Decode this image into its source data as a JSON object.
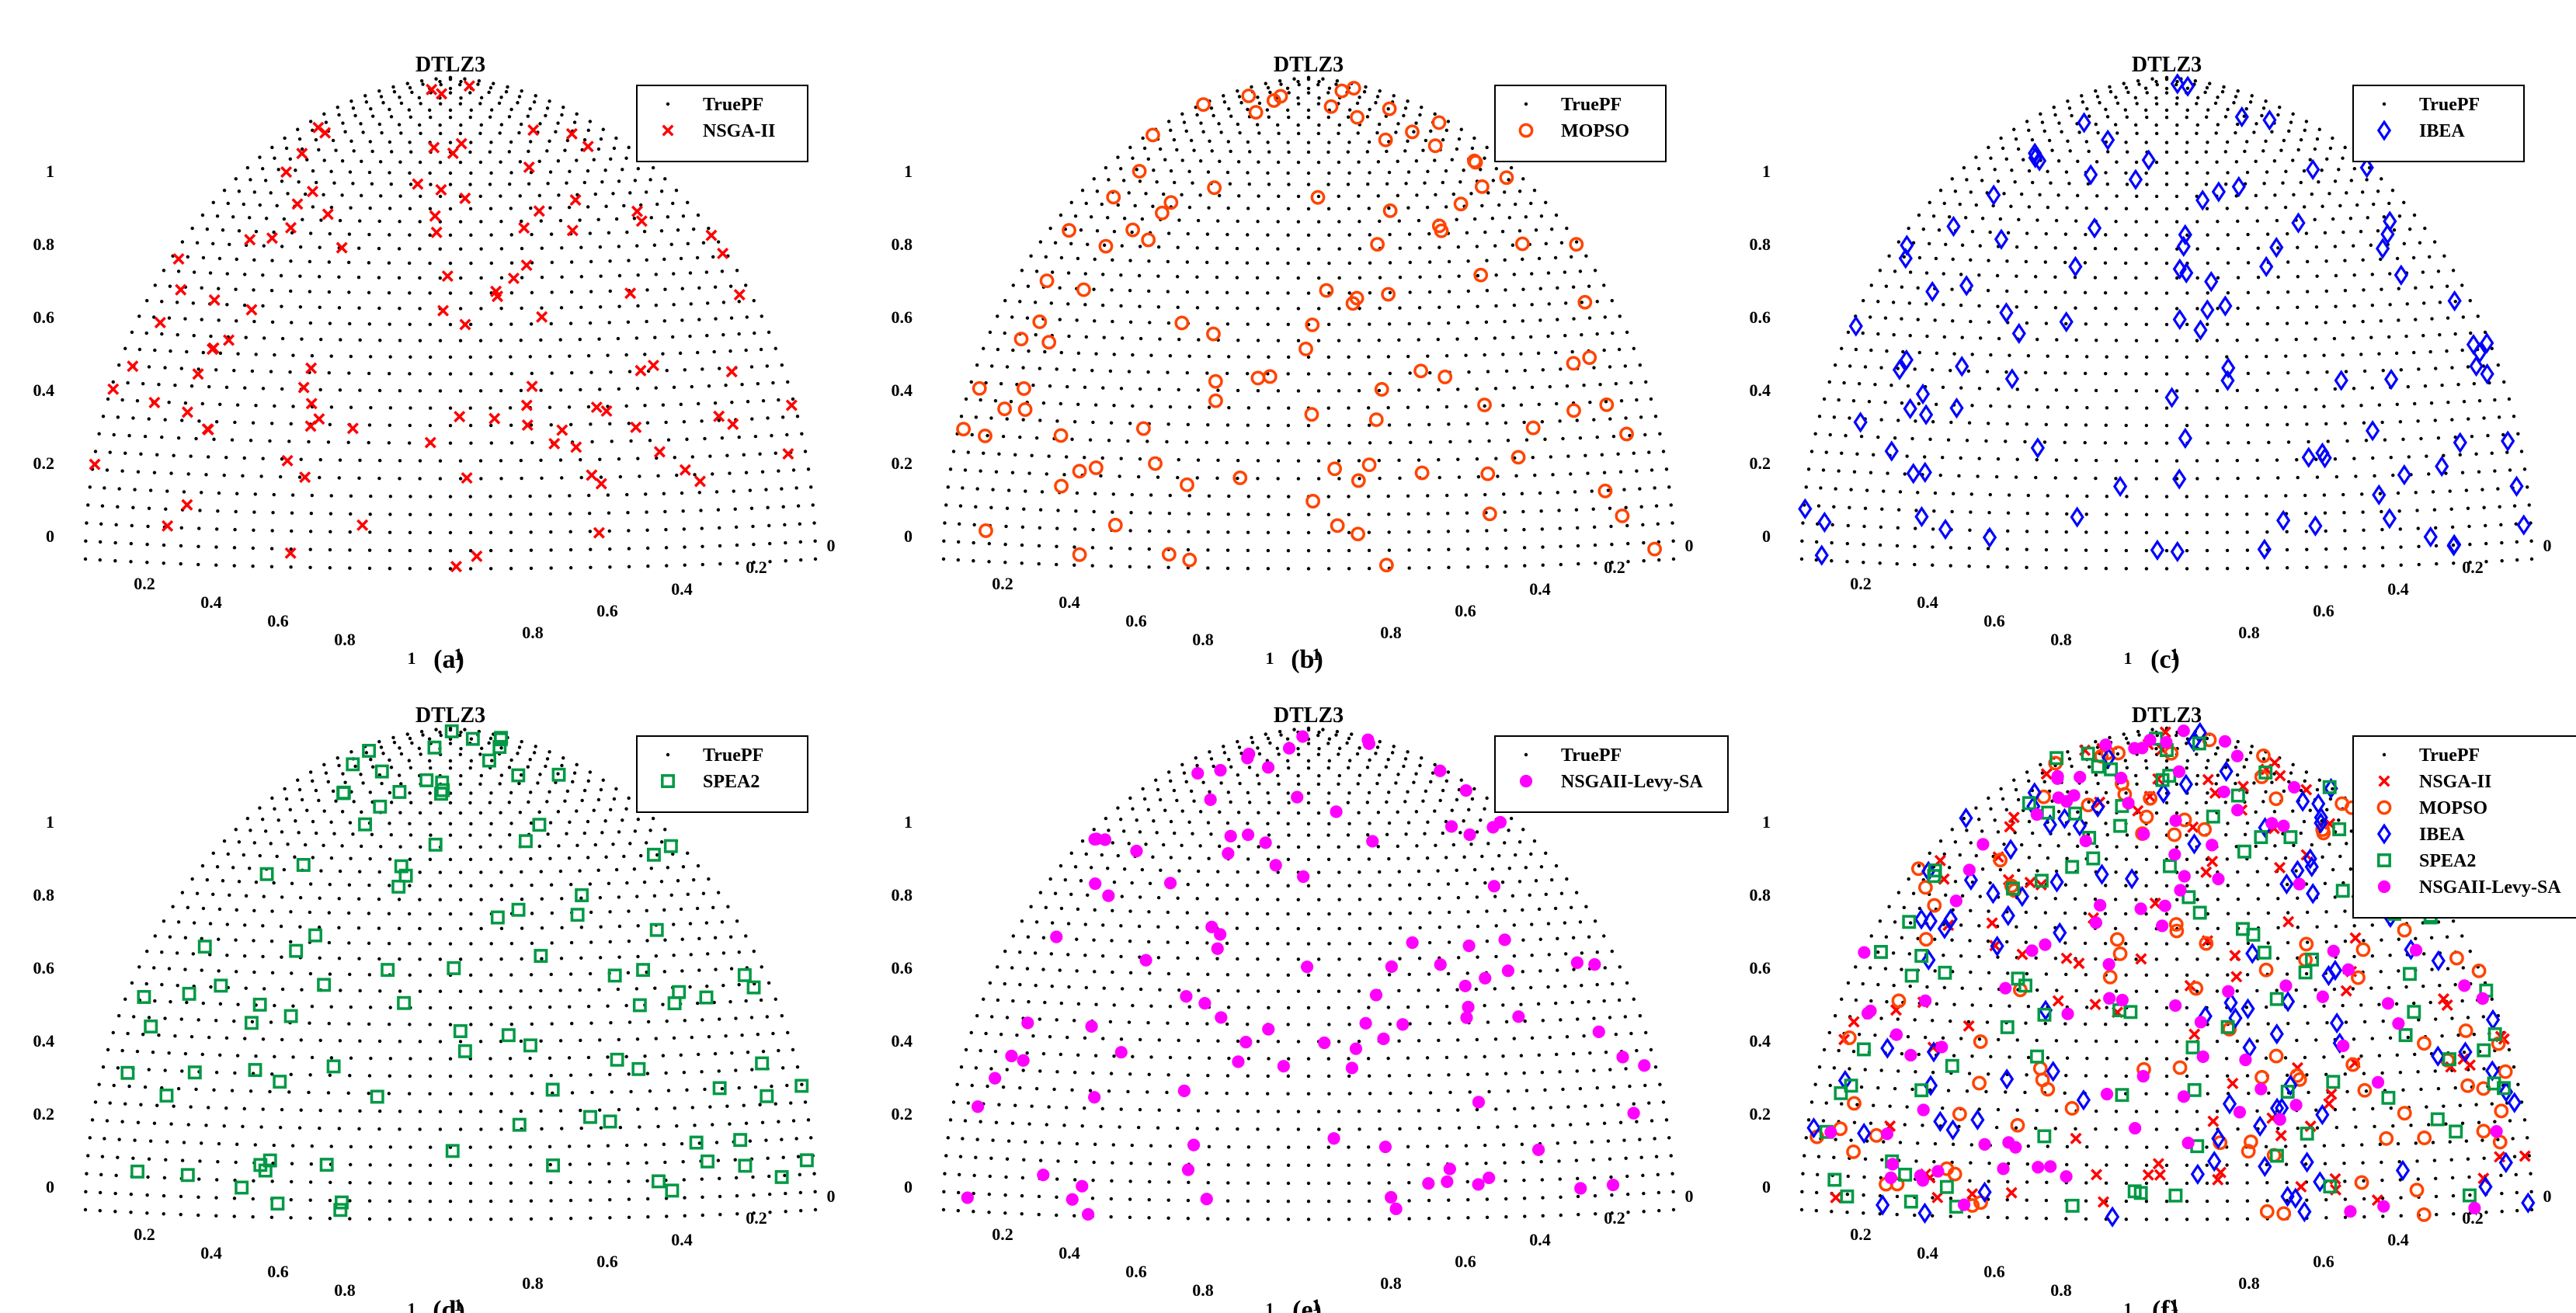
{
  "figure": {
    "description_free": true
  },
  "chart_data": [
    {
      "panel": "(a)",
      "type": "scatter",
      "title": "DTLZ3",
      "legend": [
        "TruePF",
        "NSGA-II"
      ],
      "legend_position": "top-right",
      "series": [
        {
          "name": "TruePF",
          "marker": "dot",
          "color": "#000000"
        },
        {
          "name": "NSGA-II",
          "marker": "x",
          "color": "#ff0000",
          "count_approx": 100
        }
      ],
      "z_ticks": [
        "0",
        "0.2",
        "0.4",
        "0.6",
        "0.8",
        "1"
      ],
      "x_ticks": [
        "0.2",
        "0.4",
        "0.6",
        "0.8",
        "1"
      ],
      "y_ticks": [
        "1",
        "0.8",
        "0.6",
        "0.4",
        "0.2",
        "0"
      ],
      "zlim": [
        0,
        1
      ],
      "xlim": [
        0,
        1
      ],
      "ylim": [
        0,
        1
      ]
    },
    {
      "panel": "(b)",
      "type": "scatter",
      "title": "DTLZ3",
      "legend": [
        "TruePF",
        "MOPSO"
      ],
      "legend_position": "top-right",
      "series": [
        {
          "name": "TruePF",
          "marker": "dot",
          "color": "#000000"
        },
        {
          "name": "MOPSO",
          "marker": "circle",
          "color": "#ff4400",
          "count_approx": 100
        }
      ],
      "z_ticks": [
        "0",
        "0.2",
        "0.4",
        "0.6",
        "0.8",
        "1"
      ],
      "x_ticks": [
        "0.2",
        "0.4",
        "0.6",
        "0.8",
        "1"
      ],
      "y_ticks": [
        "1",
        "0.8",
        "0.6",
        "0.4",
        "0.2",
        "0"
      ],
      "zlim": [
        0,
        1
      ],
      "xlim": [
        0,
        1
      ],
      "ylim": [
        0,
        1
      ]
    },
    {
      "panel": "(c)",
      "type": "scatter",
      "title": "DTLZ3",
      "legend": [
        "TruePF",
        "IBEA"
      ],
      "legend_position": "top-right",
      "series": [
        {
          "name": "TruePF",
          "marker": "dot",
          "color": "#000000"
        },
        {
          "name": "IBEA",
          "marker": "diamond",
          "color": "#0000ff",
          "count_approx": 100
        }
      ],
      "z_ticks": [
        "0",
        "0.2",
        "0.4",
        "0.6",
        "0.8",
        "1"
      ],
      "x_ticks": [
        "0.2",
        "0.4",
        "0.6",
        "0.8",
        "1"
      ],
      "y_ticks": [
        "1",
        "0.8",
        "0.6",
        "0.4",
        "0.2",
        "0"
      ],
      "zlim": [
        0,
        1
      ],
      "xlim": [
        0,
        1
      ],
      "ylim": [
        0,
        1
      ]
    },
    {
      "panel": "(d)",
      "type": "scatter",
      "title": "DTLZ3",
      "legend": [
        "TruePF",
        "SPEA2"
      ],
      "legend_position": "top-right",
      "series": [
        {
          "name": "TruePF",
          "marker": "dot",
          "color": "#000000"
        },
        {
          "name": "SPEA2",
          "marker": "square",
          "color": "#009944",
          "count_approx": 100
        }
      ],
      "z_ticks": [
        "0",
        "0.2",
        "0.4",
        "0.6",
        "0.8",
        "1"
      ],
      "x_ticks": [
        "0.2",
        "0.4",
        "0.6",
        "0.8",
        "1"
      ],
      "y_ticks": [
        "1",
        "0.8",
        "0.6",
        "0.4",
        "0.2",
        "0"
      ],
      "zlim": [
        0,
        1
      ],
      "xlim": [
        0,
        1
      ],
      "ylim": [
        0,
        1
      ]
    },
    {
      "panel": "(e)",
      "type": "scatter",
      "title": "DTLZ3",
      "legend": [
        "TruePF",
        "NSGAII-Levy-SA"
      ],
      "legend_position": "top-right",
      "series": [
        {
          "name": "TruePF",
          "marker": "dot",
          "color": "#000000"
        },
        {
          "name": "NSGAII-Levy-SA",
          "marker": "filled-circle",
          "color": "#ff00ff",
          "count_approx": 100
        }
      ],
      "z_ticks": [
        "0",
        "0.2",
        "0.4",
        "0.6",
        "0.8",
        "1"
      ],
      "x_ticks": [
        "0.2",
        "0.4",
        "0.6",
        "0.8",
        "1"
      ],
      "y_ticks": [
        "1",
        "0.8",
        "0.6",
        "0.4",
        "0.2",
        "0"
      ],
      "zlim": [
        0,
        1
      ],
      "xlim": [
        0,
        1
      ],
      "ylim": [
        0,
        1
      ]
    },
    {
      "panel": "(f)",
      "type": "scatter",
      "title": "DTLZ3",
      "legend": [
        "TruePF",
        "NSGA-II",
        "MOPSO",
        "IBEA",
        "SPEA2",
        "NSGAII-Levy-SA"
      ],
      "legend_position": "top-right",
      "series": [
        {
          "name": "TruePF",
          "marker": "dot",
          "color": "#000000"
        },
        {
          "name": "NSGA-II",
          "marker": "x",
          "color": "#ff0000",
          "count_approx": 100
        },
        {
          "name": "MOPSO",
          "marker": "circle",
          "color": "#ff4400",
          "count_approx": 100
        },
        {
          "name": "IBEA",
          "marker": "diamond",
          "color": "#0000ff",
          "count_approx": 100
        },
        {
          "name": "SPEA2",
          "marker": "square",
          "color": "#009944",
          "count_approx": 100
        },
        {
          "name": "NSGAII-Levy-SA",
          "marker": "filled-circle",
          "color": "#ff00ff",
          "count_approx": 100
        }
      ],
      "z_ticks": [
        "0",
        "0.2",
        "0.4",
        "0.6",
        "0.8",
        "1"
      ],
      "x_ticks": [
        "0.2",
        "0.4",
        "0.6",
        "0.8",
        "1"
      ],
      "y_ticks": [
        "1",
        "0.8",
        "0.6",
        "0.4",
        "0.2",
        "0"
      ],
      "zlim": [
        0,
        1
      ],
      "xlim": [
        0,
        1
      ],
      "ylim": [
        0,
        1
      ]
    }
  ]
}
